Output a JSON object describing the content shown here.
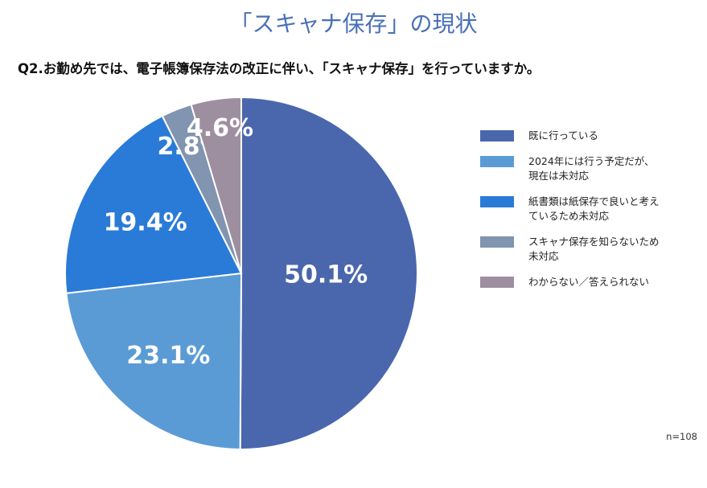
{
  "title": "「スキャナ保存」の現状",
  "question": "Q2.お勤め先では、電子帳簿保存法の改正に伴い、「スキャナ保存」を行っていますか。",
  "note": "n=108",
  "chart_data": {
    "type": "pie",
    "title": "「スキャナ保存」の現状",
    "slices": [
      {
        "name": "既に行っている",
        "value": 50.1,
        "label": "50.1%",
        "color": "#4a67ad"
      },
      {
        "name": "2024年には行う予定だが、\n現在は未対応",
        "value": 23.1,
        "label": "23.1%",
        "color": "#5b9bd5"
      },
      {
        "name": "紙書類は紙保存で良いと考え\nているため未対応",
        "value": 19.4,
        "label": "19.4%",
        "color": "#2a7bd7"
      },
      {
        "name": "スキャナ保存を知らないため\n未対応",
        "value": 2.8,
        "label": "2.8%",
        "color": "#8194b0"
      },
      {
        "name": "わからない／答えられない",
        "value": 4.6,
        "label": "4.6%",
        "color": "#9d8fa0"
      }
    ],
    "legend_position": "right"
  }
}
